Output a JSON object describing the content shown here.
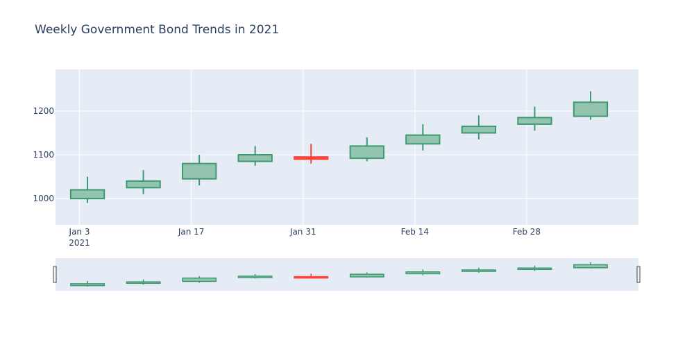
{
  "chart_data": {
    "type": "candlestick",
    "title": "Weekly Government Bond Trends in 2021",
    "xlabel": "",
    "ylabel": "",
    "x_ticks": [
      {
        "date": "2021-01-03",
        "label": "Jan 3",
        "sublabel": "2021"
      },
      {
        "date": "2021-01-17",
        "label": "Jan 17",
        "sublabel": ""
      },
      {
        "date": "2021-01-31",
        "label": "Jan 31",
        "sublabel": ""
      },
      {
        "date": "2021-02-14",
        "label": "Feb 14",
        "sublabel": ""
      },
      {
        "date": "2021-02-28",
        "label": "Feb 28",
        "sublabel": ""
      }
    ],
    "y_ticks": [
      1000,
      1100,
      1200
    ],
    "ylim": [
      940,
      1295
    ],
    "xlim": [
      "2020-12-31",
      "2021-03-14"
    ],
    "grid": true,
    "rangeslider": true,
    "colors": {
      "increasing": "#3d9970",
      "increasing_fill": "#93c4b0",
      "decreasing": "#ff4136",
      "plot_bg": "#e5ecf6",
      "grid": "#ffffff",
      "text": "#2a3f5f"
    },
    "candles": [
      {
        "date": "2021-01-04",
        "open": 1000,
        "high": 1050,
        "low": 990,
        "close": 1020
      },
      {
        "date": "2021-01-11",
        "open": 1025,
        "high": 1065,
        "low": 1010,
        "close": 1040
      },
      {
        "date": "2021-01-18",
        "open": 1045,
        "high": 1100,
        "low": 1030,
        "close": 1080
      },
      {
        "date": "2021-01-25",
        "open": 1085,
        "high": 1120,
        "low": 1075,
        "close": 1100
      },
      {
        "date": "2021-02-01",
        "open": 1095,
        "high": 1125,
        "low": 1080,
        "close": 1090
      },
      {
        "date": "2021-02-08",
        "open": 1092,
        "high": 1140,
        "low": 1085,
        "close": 1120
      },
      {
        "date": "2021-02-15",
        "open": 1125,
        "high": 1170,
        "low": 1110,
        "close": 1145
      },
      {
        "date": "2021-02-22",
        "open": 1150,
        "high": 1190,
        "low": 1135,
        "close": 1165
      },
      {
        "date": "2021-03-01",
        "open": 1170,
        "high": 1210,
        "low": 1155,
        "close": 1185
      },
      {
        "date": "2021-03-08",
        "open": 1188,
        "high": 1245,
        "low": 1180,
        "close": 1220
      }
    ]
  }
}
